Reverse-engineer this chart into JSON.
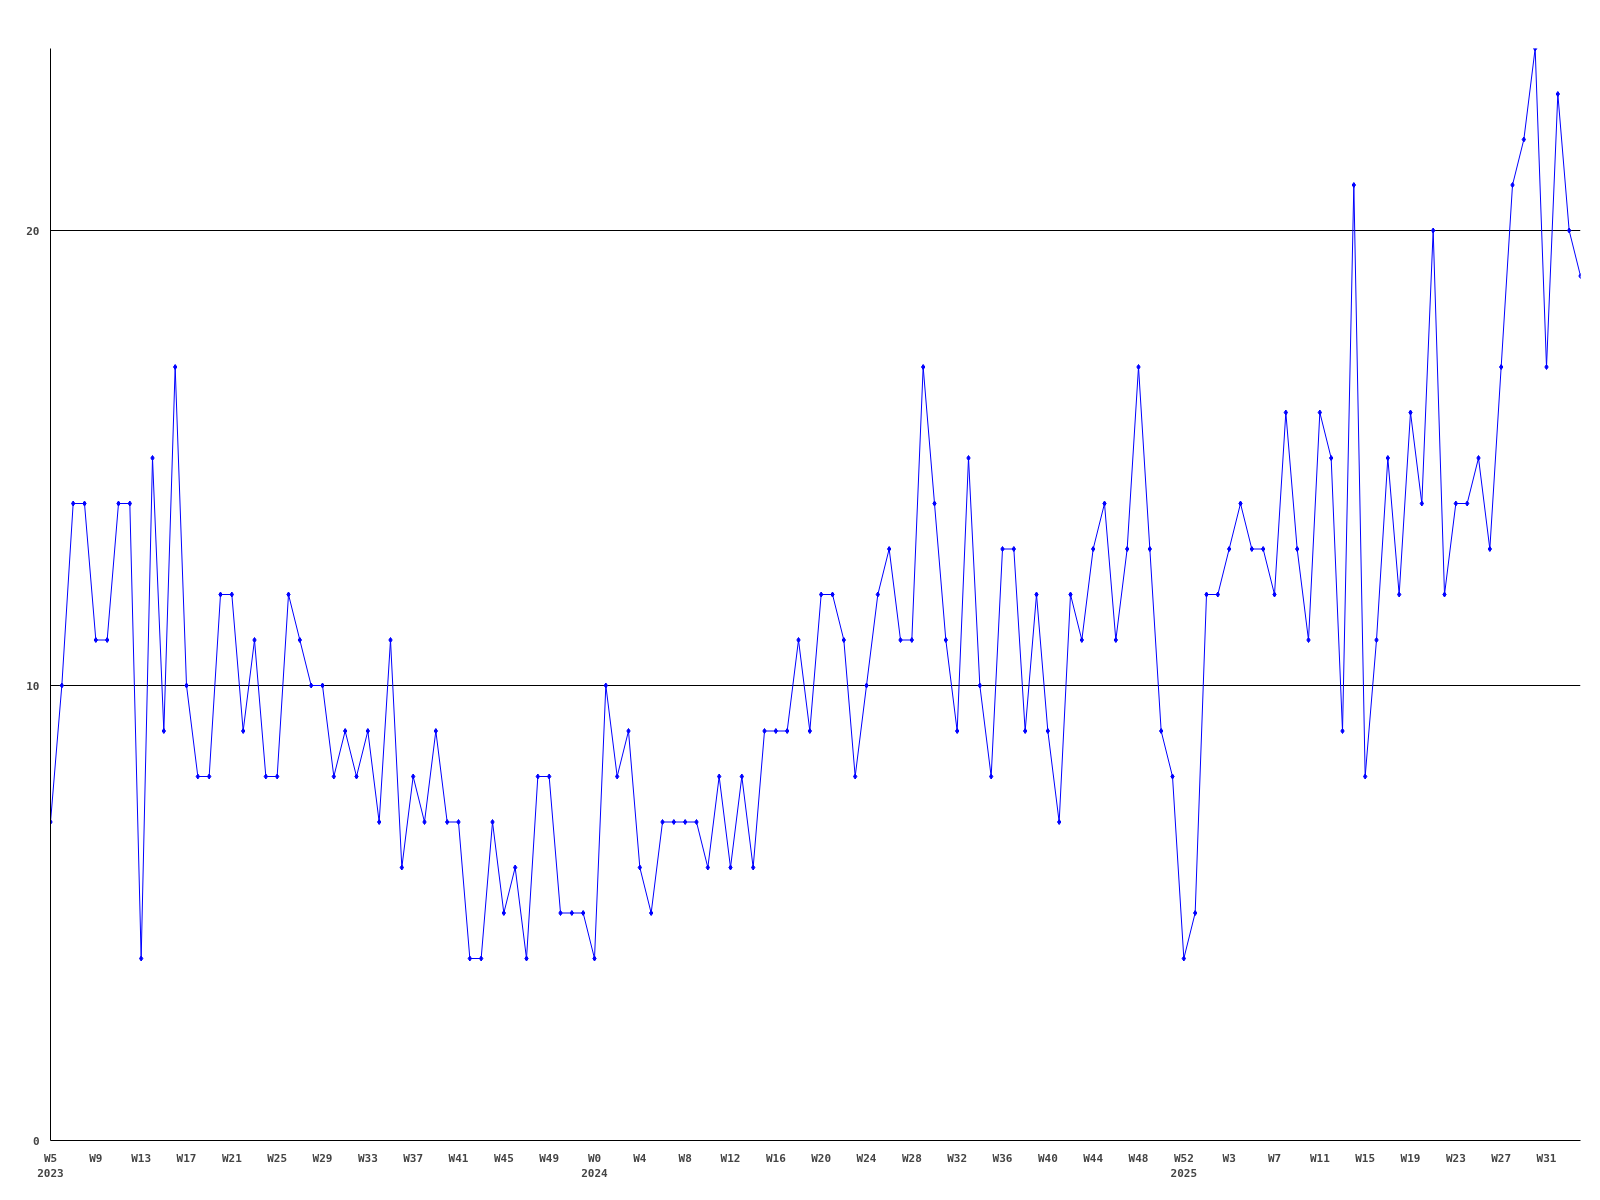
{
  "chart_data": {
    "type": "line",
    "categories": [
      "W5\n2023",
      null,
      null,
      null,
      "W9",
      null,
      null,
      null,
      "W13",
      null,
      null,
      null,
      "W17",
      null,
      null,
      null,
      "W21",
      null,
      null,
      null,
      "W25",
      null,
      null,
      null,
      "W29",
      null,
      null,
      null,
      "W33",
      null,
      null,
      null,
      "W37",
      null,
      null,
      null,
      "W41",
      null,
      null,
      null,
      "W45",
      null,
      null,
      null,
      "W49",
      null,
      null,
      null,
      "W0\n2024",
      null,
      null,
      null,
      "W4",
      null,
      null,
      null,
      "W8",
      null,
      null,
      null,
      "W12",
      null,
      null,
      null,
      "W16",
      null,
      null,
      null,
      "W20",
      null,
      null,
      null,
      "W24",
      null,
      null,
      null,
      "W28",
      null,
      null,
      null,
      "W32",
      null,
      null,
      null,
      "W36",
      null,
      null,
      null,
      "W40",
      null,
      null,
      null,
      "W44",
      null,
      null,
      null,
      "W48",
      null,
      null,
      null,
      "W52\n2025",
      null,
      null,
      null,
      "W3",
      null,
      null,
      null,
      "W7",
      null,
      null,
      null,
      "W11",
      null,
      null,
      null,
      "W15",
      null,
      null,
      null,
      "W19",
      null,
      null,
      null,
      "W23",
      null,
      null,
      null,
      "W27",
      null,
      null,
      null,
      "W31",
      null,
      null,
      null
    ],
    "series": [
      {
        "color": "#0000ff",
        "values": [
          7,
          10,
          14,
          14,
          11,
          11,
          14,
          14,
          4,
          15,
          9,
          17,
          10,
          8,
          8,
          12,
          12,
          9,
          11,
          8,
          8,
          12,
          11,
          10,
          10,
          8,
          9,
          8,
          9,
          7,
          11,
          6,
          8,
          7,
          9,
          7,
          7,
          4,
          4,
          7,
          5,
          6,
          4,
          8,
          8,
          5,
          5,
          5,
          4,
          10,
          8,
          9,
          6,
          5,
          7,
          7,
          7,
          7,
          6,
          8,
          6,
          8,
          6,
          9,
          9,
          9,
          11,
          9,
          12,
          12,
          11,
          8,
          10,
          12,
          13,
          11,
          11,
          17,
          14,
          11,
          9,
          15,
          10,
          8,
          13,
          13,
          9,
          12,
          9,
          7,
          12,
          11,
          13,
          14,
          11,
          13,
          17,
          13,
          9,
          8,
          4,
          5,
          12,
          12,
          13,
          14,
          13,
          13,
          12,
          16,
          13,
          11,
          16,
          15,
          9,
          21,
          8,
          11,
          15,
          12,
          16,
          14,
          20,
          12,
          14,
          14,
          15,
          13,
          17,
          21,
          22,
          24,
          17,
          23,
          20,
          19
        ]
      }
    ],
    "ylim": [
      0,
      24
    ],
    "yticks": [
      0,
      10,
      20
    ],
    "grid": "y",
    "marker": "diamond",
    "line_style": "solid"
  }
}
